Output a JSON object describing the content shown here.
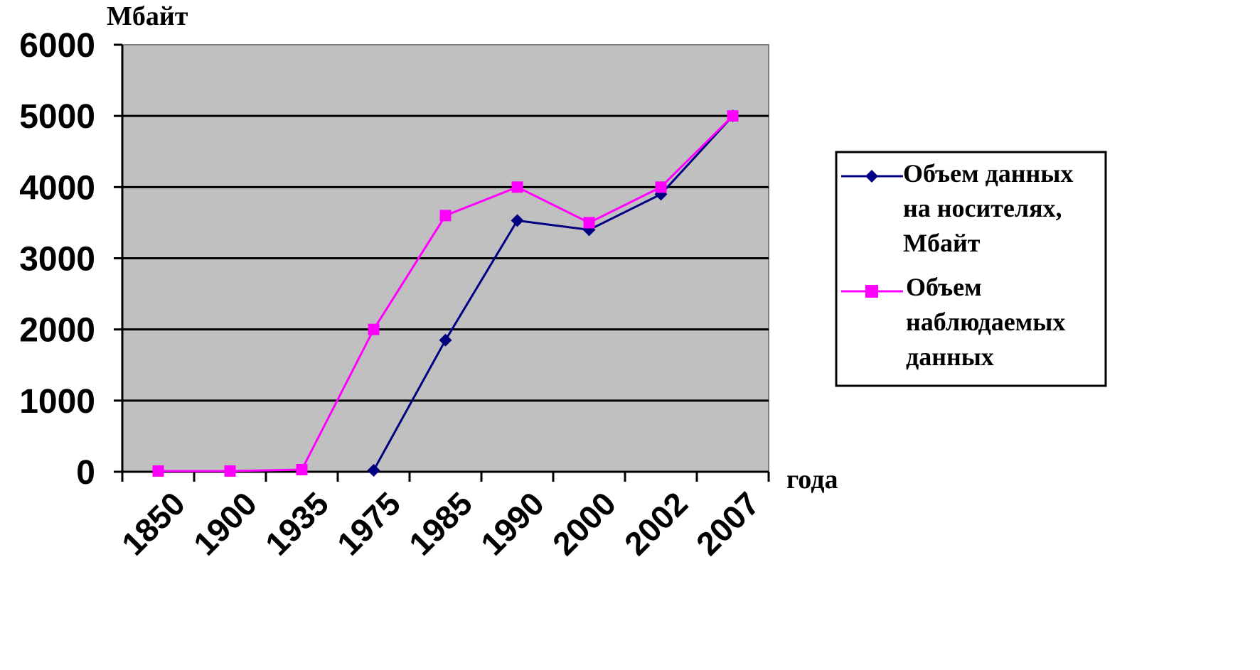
{
  "chart_data": {
    "type": "line",
    "categories": [
      "1850",
      "1900",
      "1935",
      "1975",
      "1985",
      "1990",
      "2000",
      "2002",
      "2007"
    ],
    "ylabel": "Мбайт",
    "xlabel": "года",
    "ylim": [
      0,
      6000
    ],
    "yticks": [
      "0",
      "1000",
      "2000",
      "3000",
      "4000",
      "5000",
      "6000"
    ],
    "grid": true,
    "legend_position": "right",
    "plot_background": "#c0c0c0",
    "series": [
      {
        "name": "Объем данных на носителях, Мбайт",
        "legend_lines": [
          "Объем данных",
          "на носителях,",
          "Мбайт"
        ],
        "color": "#000080",
        "marker": "diamond",
        "values": [
          null,
          null,
          null,
          20,
          1850,
          3530,
          3400,
          3900,
          5000
        ]
      },
      {
        "name": "Объем наблюдаемых данных",
        "legend_lines": [
          "Объем",
          "наблюдаемых",
          "данных"
        ],
        "color": "#ff00ff",
        "marker": "square",
        "values": [
          10,
          10,
          30,
          2000,
          3600,
          4000,
          3500,
          4000,
          5000
        ]
      }
    ]
  }
}
